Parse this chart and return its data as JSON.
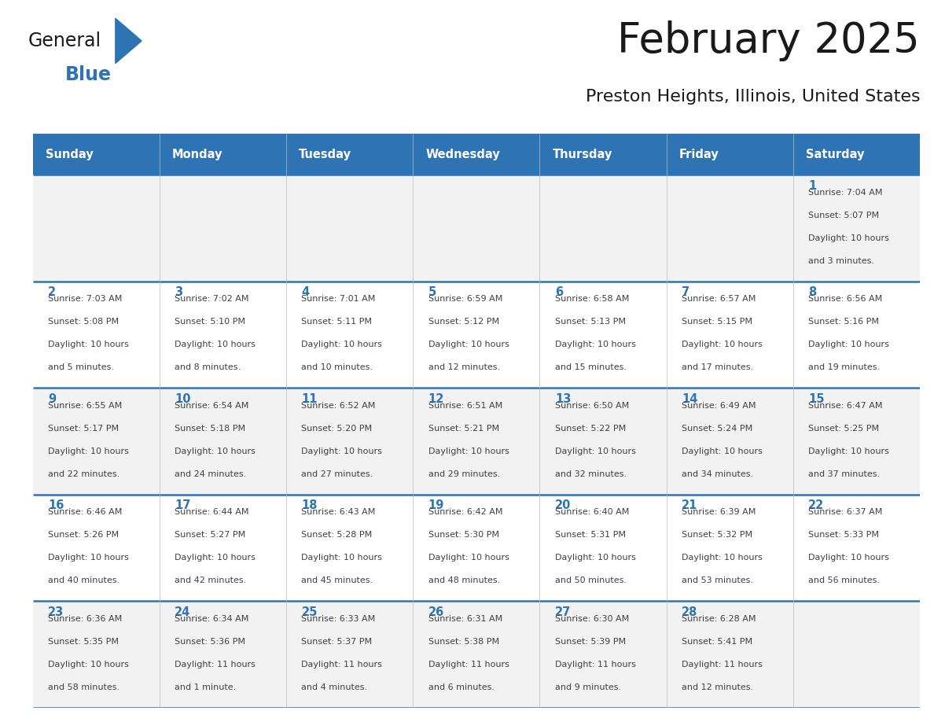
{
  "title": "February 2025",
  "subtitle": "Preston Heights, Illinois, United States",
  "days_of_week": [
    "Sunday",
    "Monday",
    "Tuesday",
    "Wednesday",
    "Thursday",
    "Friday",
    "Saturday"
  ],
  "header_bg": "#2E74B5",
  "header_text": "#FFFFFF",
  "row_separator_color": "#2E74B5",
  "day_number_color": "#2E74B5",
  "cell_text_color": "#404040",
  "alt_row_bg": "#F2F2F2",
  "white_bg": "#FFFFFF",
  "title_color": "#1A1A1A",
  "subtitle_color": "#1A1A1A",
  "calendar_data": [
    [
      {
        "day": null,
        "info": null
      },
      {
        "day": null,
        "info": null
      },
      {
        "day": null,
        "info": null
      },
      {
        "day": null,
        "info": null
      },
      {
        "day": null,
        "info": null
      },
      {
        "day": null,
        "info": null
      },
      {
        "day": 1,
        "info": "Sunrise: 7:04 AM\nSunset: 5:07 PM\nDaylight: 10 hours\nand 3 minutes."
      }
    ],
    [
      {
        "day": 2,
        "info": "Sunrise: 7:03 AM\nSunset: 5:08 PM\nDaylight: 10 hours\nand 5 minutes."
      },
      {
        "day": 3,
        "info": "Sunrise: 7:02 AM\nSunset: 5:10 PM\nDaylight: 10 hours\nand 8 minutes."
      },
      {
        "day": 4,
        "info": "Sunrise: 7:01 AM\nSunset: 5:11 PM\nDaylight: 10 hours\nand 10 minutes."
      },
      {
        "day": 5,
        "info": "Sunrise: 6:59 AM\nSunset: 5:12 PM\nDaylight: 10 hours\nand 12 minutes."
      },
      {
        "day": 6,
        "info": "Sunrise: 6:58 AM\nSunset: 5:13 PM\nDaylight: 10 hours\nand 15 minutes."
      },
      {
        "day": 7,
        "info": "Sunrise: 6:57 AM\nSunset: 5:15 PM\nDaylight: 10 hours\nand 17 minutes."
      },
      {
        "day": 8,
        "info": "Sunrise: 6:56 AM\nSunset: 5:16 PM\nDaylight: 10 hours\nand 19 minutes."
      }
    ],
    [
      {
        "day": 9,
        "info": "Sunrise: 6:55 AM\nSunset: 5:17 PM\nDaylight: 10 hours\nand 22 minutes."
      },
      {
        "day": 10,
        "info": "Sunrise: 6:54 AM\nSunset: 5:18 PM\nDaylight: 10 hours\nand 24 minutes."
      },
      {
        "day": 11,
        "info": "Sunrise: 6:52 AM\nSunset: 5:20 PM\nDaylight: 10 hours\nand 27 minutes."
      },
      {
        "day": 12,
        "info": "Sunrise: 6:51 AM\nSunset: 5:21 PM\nDaylight: 10 hours\nand 29 minutes."
      },
      {
        "day": 13,
        "info": "Sunrise: 6:50 AM\nSunset: 5:22 PM\nDaylight: 10 hours\nand 32 minutes."
      },
      {
        "day": 14,
        "info": "Sunrise: 6:49 AM\nSunset: 5:24 PM\nDaylight: 10 hours\nand 34 minutes."
      },
      {
        "day": 15,
        "info": "Sunrise: 6:47 AM\nSunset: 5:25 PM\nDaylight: 10 hours\nand 37 minutes."
      }
    ],
    [
      {
        "day": 16,
        "info": "Sunrise: 6:46 AM\nSunset: 5:26 PM\nDaylight: 10 hours\nand 40 minutes."
      },
      {
        "day": 17,
        "info": "Sunrise: 6:44 AM\nSunset: 5:27 PM\nDaylight: 10 hours\nand 42 minutes."
      },
      {
        "day": 18,
        "info": "Sunrise: 6:43 AM\nSunset: 5:28 PM\nDaylight: 10 hours\nand 45 minutes."
      },
      {
        "day": 19,
        "info": "Sunrise: 6:42 AM\nSunset: 5:30 PM\nDaylight: 10 hours\nand 48 minutes."
      },
      {
        "day": 20,
        "info": "Sunrise: 6:40 AM\nSunset: 5:31 PM\nDaylight: 10 hours\nand 50 minutes."
      },
      {
        "day": 21,
        "info": "Sunrise: 6:39 AM\nSunset: 5:32 PM\nDaylight: 10 hours\nand 53 minutes."
      },
      {
        "day": 22,
        "info": "Sunrise: 6:37 AM\nSunset: 5:33 PM\nDaylight: 10 hours\nand 56 minutes."
      }
    ],
    [
      {
        "day": 23,
        "info": "Sunrise: 6:36 AM\nSunset: 5:35 PM\nDaylight: 10 hours\nand 58 minutes."
      },
      {
        "day": 24,
        "info": "Sunrise: 6:34 AM\nSunset: 5:36 PM\nDaylight: 11 hours\nand 1 minute."
      },
      {
        "day": 25,
        "info": "Sunrise: 6:33 AM\nSunset: 5:37 PM\nDaylight: 11 hours\nand 4 minutes."
      },
      {
        "day": 26,
        "info": "Sunrise: 6:31 AM\nSunset: 5:38 PM\nDaylight: 11 hours\nand 6 minutes."
      },
      {
        "day": 27,
        "info": "Sunrise: 6:30 AM\nSunset: 5:39 PM\nDaylight: 11 hours\nand 9 minutes."
      },
      {
        "day": 28,
        "info": "Sunrise: 6:28 AM\nSunset: 5:41 PM\nDaylight: 11 hours\nand 12 minutes."
      },
      {
        "day": null,
        "info": null
      }
    ]
  ],
  "logo_text1": "General",
  "logo_text2": "Blue",
  "logo_color1": "#1A1A1A",
  "logo_color2": "#2E74B5",
  "logo_triangle_color": "#2E74B5",
  "fig_width": 11.88,
  "fig_height": 9.18,
  "dpi": 100
}
